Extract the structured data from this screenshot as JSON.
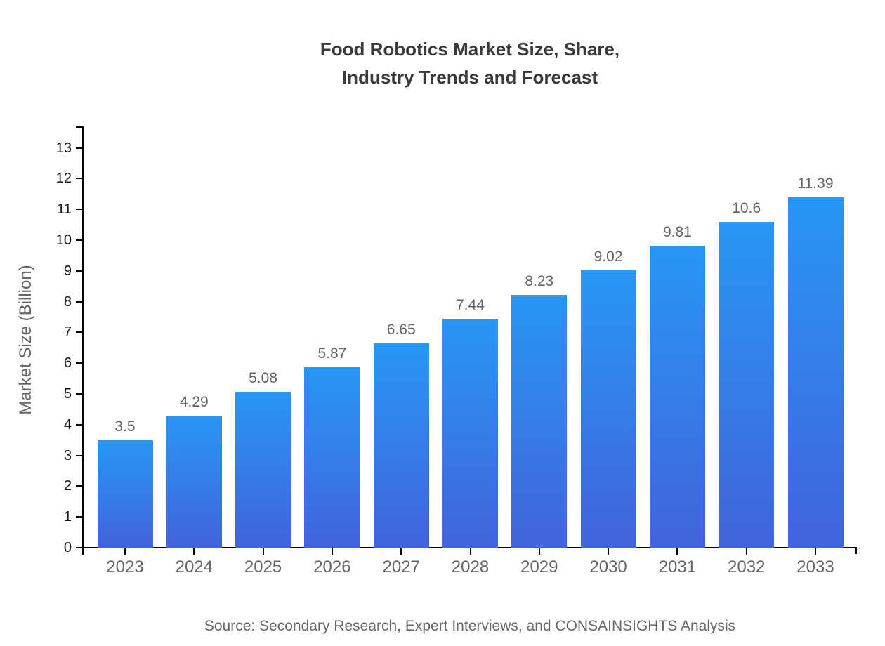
{
  "page": {
    "background": "#ffffff"
  },
  "header": {
    "title_line1": "Food Robotics Market Size, Share,",
    "title_line2": "Industry Trends and Forecast"
  },
  "footer": {
    "source": "Source: Secondary Research, Expert Interviews, and CONSAINSIGHTS Analysis"
  },
  "chart_data": {
    "type": "bar",
    "title": "Food Robotics Market Size, Share, Industry Trends and Forecast",
    "categories": [
      "2023",
      "2024",
      "2025",
      "2026",
      "2027",
      "2028",
      "2029",
      "2030",
      "2031",
      "2032",
      "2033"
    ],
    "values": [
      3.5,
      4.29,
      5.08,
      5.87,
      6.65,
      7.44,
      8.23,
      9.02,
      9.81,
      10.6,
      11.39
    ],
    "value_labels": [
      "3.5",
      "4.29",
      "5.08",
      "5.87",
      "6.65",
      "7.44",
      "8.23",
      "9.02",
      "9.81",
      "10.6",
      "11.39"
    ],
    "xlabel": "",
    "ylabel": "Market Size (Billion)",
    "ylim": [
      0,
      13.7
    ],
    "yticks": [
      0,
      1,
      2,
      3,
      4,
      5,
      6,
      7,
      8,
      9,
      10,
      11,
      12,
      13
    ],
    "grid": false,
    "legend": "none",
    "colors": {
      "bar_gradient_top": "#2897F4",
      "bar_gradient_bottom": "#4263DC",
      "axis": "#000000",
      "y_tick_label": "#141414",
      "x_tick_label": "#666666",
      "value_label": "#5f6368",
      "title": "#3a3a3a",
      "ylabel": "#666666",
      "source": "#666666"
    }
  }
}
